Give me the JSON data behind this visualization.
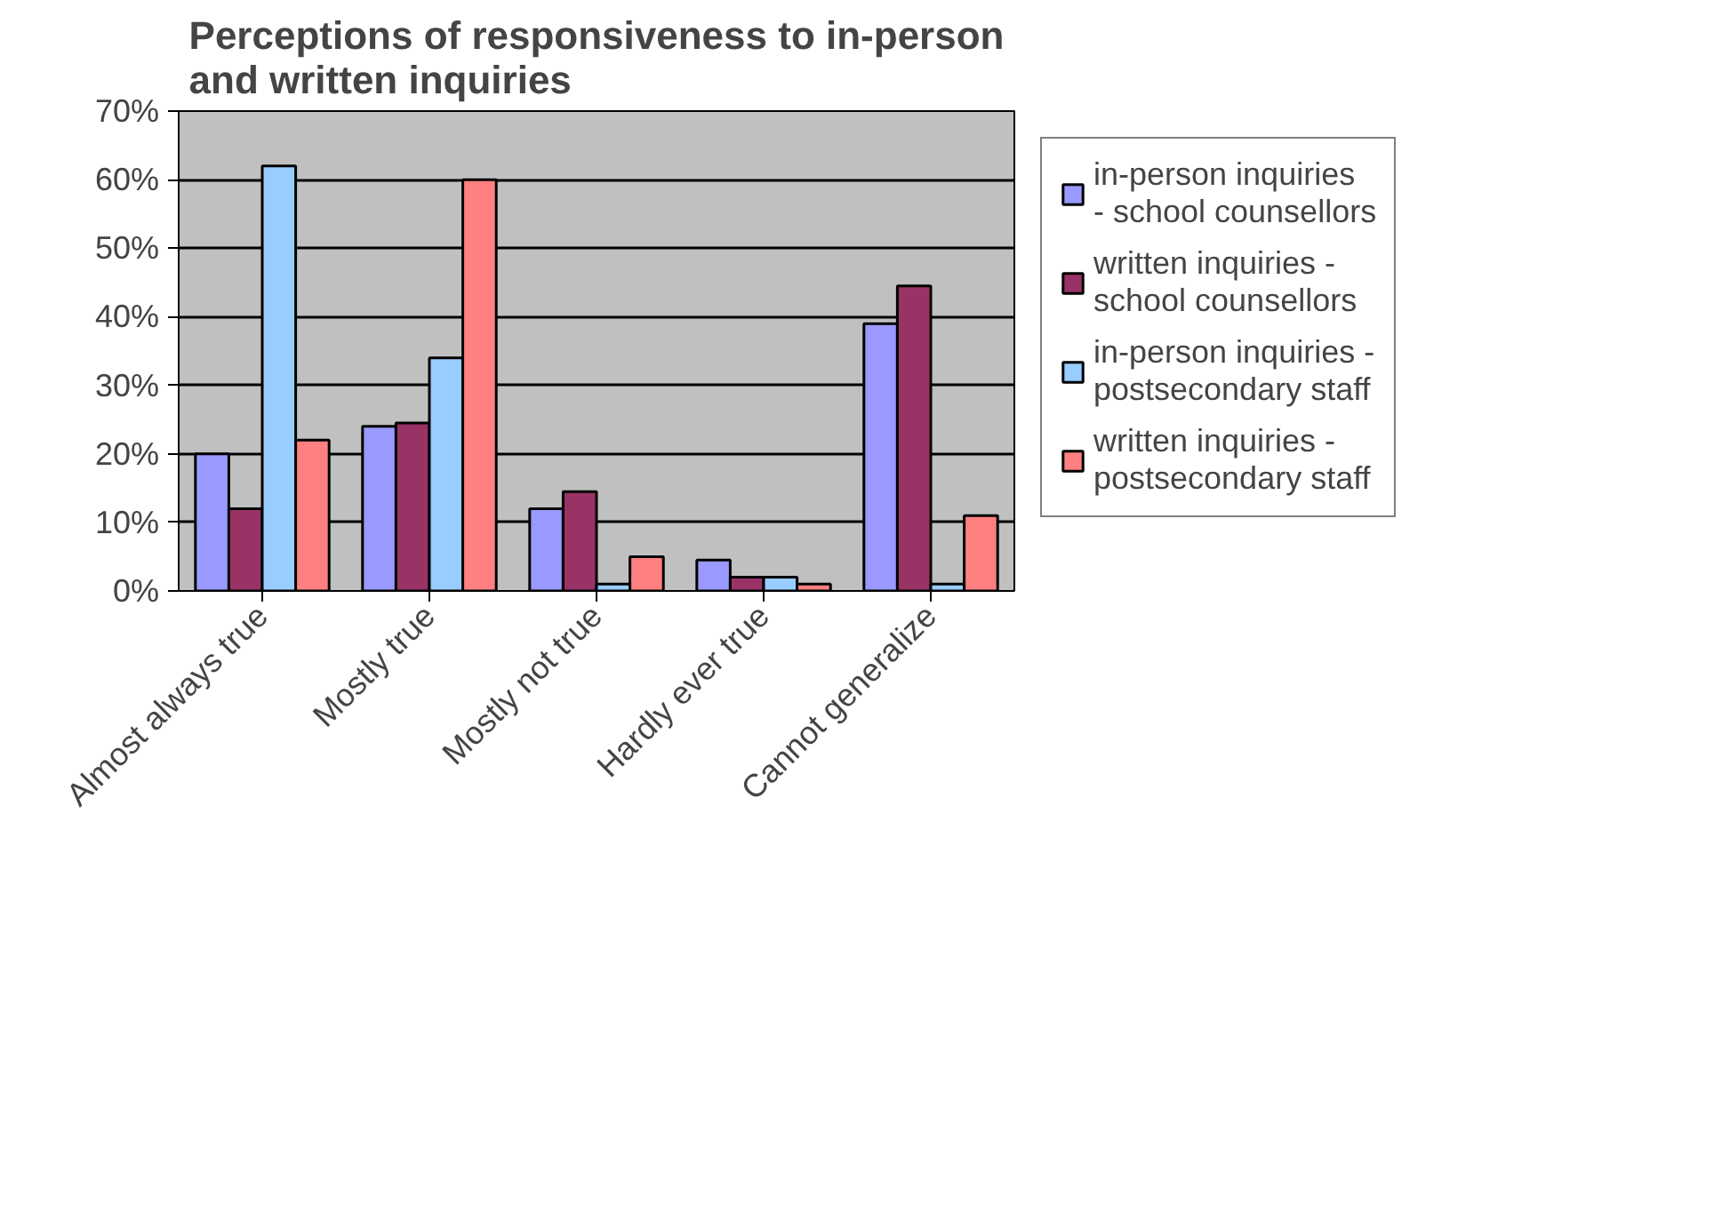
{
  "chart_data": {
    "type": "bar",
    "title": "Perceptions of responsiveness to in-person and written inquiries",
    "categories": [
      "Almost always true",
      "Mostly true",
      "Mostly not true",
      "Hardly ever true",
      "Cannot generalize"
    ],
    "series": [
      {
        "name": "in-person inquiries - school counsellors",
        "color": "#9999ff",
        "values": [
          20,
          24,
          12,
          4.5,
          39
        ]
      },
      {
        "name": "written inquiries - school counsellors",
        "color": "#993366",
        "values": [
          12,
          24.5,
          14.5,
          2,
          44.5
        ]
      },
      {
        "name": "in-person inquiries - postsecondary staff",
        "color": "#99ccff",
        "values": [
          62,
          34,
          1,
          2,
          1
        ]
      },
      {
        "name": "written inquiries - postsecondary staff",
        "color": "#ff8080",
        "values": [
          22,
          60,
          5,
          1,
          11
        ]
      }
    ],
    "ylim": [
      0,
      70
    ],
    "yticks": [
      {
        "value": 0,
        "label": "0%"
      },
      {
        "value": 10,
        "label": "10%"
      },
      {
        "value": 20,
        "label": "20%"
      },
      {
        "value": 30,
        "label": "30%"
      },
      {
        "value": 40,
        "label": "40%"
      },
      {
        "value": 50,
        "label": "50%"
      },
      {
        "value": 60,
        "label": "60%"
      },
      {
        "value": 70,
        "label": "70%"
      }
    ],
    "grid": "y",
    "legend": "right"
  }
}
